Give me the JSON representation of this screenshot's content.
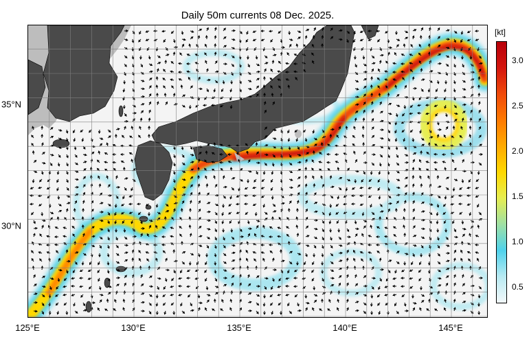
{
  "title": "Daily 50m currents 08 Dec. 2025.",
  "x_ticks": [
    "125°E",
    "130°E",
    "135°E",
    "140°E",
    "145°E"
  ],
  "y_ticks": [
    "35°N",
    "30°N"
  ],
  "colorbar": {
    "unit": "[kt]",
    "ticks": [
      "3.0",
      "2.5",
      "2.0",
      "1.5",
      "1.0",
      "0.5"
    ],
    "colors": [
      "#f2f8fa",
      "#b8eaf2",
      "#4fd2ec",
      "#9fe0a4",
      "#e6ee52",
      "#ffd800",
      "#ffaa00",
      "#ff7a00",
      "#f04a0a",
      "#d4160e",
      "#b8000a"
    ]
  },
  "map_colors": {
    "land": "#4a4a4a",
    "shallow": "#bdbdbd",
    "sea": "#f4f4f4",
    "grid": "#808080"
  }
}
